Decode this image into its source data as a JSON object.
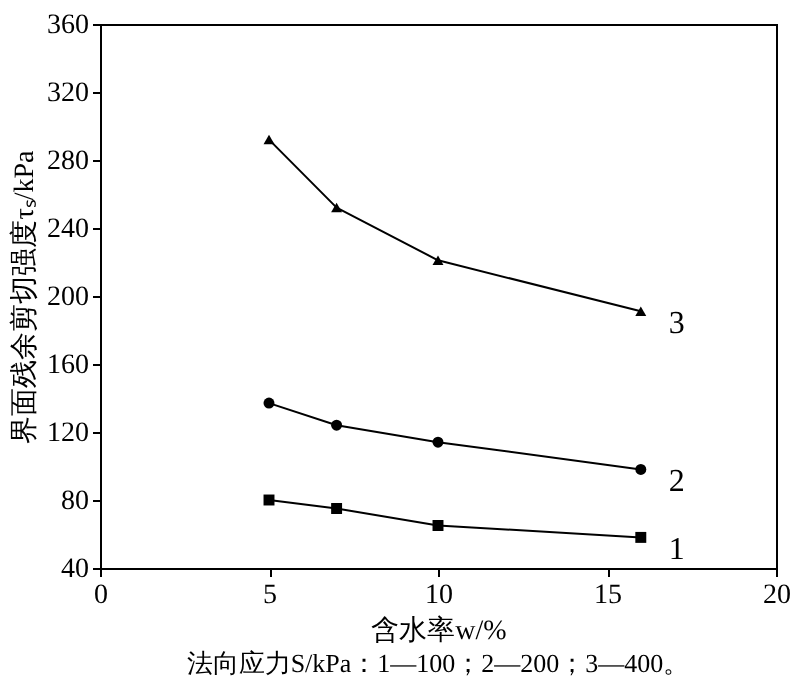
{
  "chart_data": {
    "type": "line",
    "xlabel": "含水率w/%",
    "ylabel": "界面残余剪切强度τₛ/kPa",
    "annotations": [
      "法向应力S/kPa：1—100；2—200；3—400。"
    ],
    "x": [
      5,
      7,
      10,
      16
    ],
    "series": [
      {
        "name": "1",
        "color": "#000000",
        "marker": "square",
        "values": [
          80,
          75,
          65,
          58
        ]
      },
      {
        "name": "2",
        "color": "#000000",
        "marker": "circle",
        "values": [
          137,
          124,
          114,
          98
        ]
      },
      {
        "name": "3",
        "color": "#000000",
        "marker": "triangle",
        "values": [
          292,
          252,
          221,
          191
        ]
      }
    ],
    "xlim": [
      0,
      20
    ],
    "xticks": [
      0,
      5,
      10,
      15,
      20
    ],
    "ylim": [
      40,
      360
    ],
    "yticks": [
      40,
      80,
      120,
      160,
      200,
      240,
      280,
      320,
      360
    ],
    "grid": false,
    "line_style": "solid"
  }
}
